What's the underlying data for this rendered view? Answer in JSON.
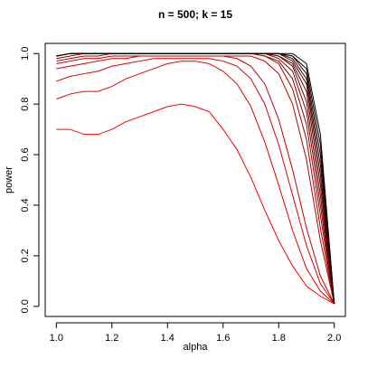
{
  "chart_data": {
    "type": "line",
    "title": "n = 500; k = 15",
    "x_label": "alpha",
    "y_label": "power",
    "x": [
      1.0,
      1.05,
      1.1,
      1.15,
      1.2,
      1.25,
      1.3,
      1.35,
      1.4,
      1.45,
      1.5,
      1.55,
      1.6,
      1.65,
      1.7,
      1.75,
      1.8,
      1.85,
      1.9,
      1.95,
      2.0
    ],
    "xlim": [
      0.96,
      2.04
    ],
    "ylim": [
      -0.04,
      1.04
    ],
    "xticks": [
      {
        "value": 1.0,
        "label": "1.0"
      },
      1.2,
      1.4,
      1.6,
      1.8,
      {
        "value": 2.0,
        "label": "2.0"
      }
    ],
    "yticks": [
      {
        "value": 0,
        "label": "0.0"
      },
      0.2,
      0.4,
      0.6,
      0.8,
      {
        "value": 1,
        "label": "1.0"
      }
    ],
    "series": [
      {
        "color": "#ff0000",
        "values": [
          0.7,
          0.7,
          0.68,
          0.68,
          0.7,
          0.73,
          0.75,
          0.77,
          0.79,
          0.8,
          0.79,
          0.77,
          0.7,
          0.62,
          0.51,
          0.38,
          0.26,
          0.16,
          0.08,
          0.04,
          0.01
        ]
      },
      {
        "color": "#ed0000",
        "values": [
          0.82,
          0.84,
          0.85,
          0.85,
          0.87,
          0.9,
          0.92,
          0.94,
          0.96,
          0.97,
          0.97,
          0.96,
          0.93,
          0.88,
          0.79,
          0.65,
          0.48,
          0.3,
          0.15,
          0.06,
          0.01
        ]
      },
      {
        "color": "#db0000",
        "values": [
          0.89,
          0.91,
          0.92,
          0.93,
          0.95,
          0.96,
          0.97,
          0.98,
          0.98,
          0.98,
          0.98,
          0.98,
          0.97,
          0.95,
          0.9,
          0.8,
          0.64,
          0.44,
          0.24,
          0.09,
          0.01
        ]
      },
      {
        "color": "#c80000",
        "values": [
          0.94,
          0.95,
          0.96,
          0.97,
          0.98,
          0.98,
          0.99,
          0.99,
          0.99,
          0.99,
          0.99,
          0.99,
          0.99,
          0.98,
          0.95,
          0.88,
          0.74,
          0.54,
          0.31,
          0.12,
          0.01
        ]
      },
      {
        "color": "#b60000",
        "values": [
          0.96,
          0.97,
          0.98,
          0.98,
          0.99,
          0.99,
          0.99,
          0.99,
          0.99,
          0.99,
          0.99,
          0.99,
          0.99,
          0.99,
          0.99,
          0.97,
          0.92,
          0.8,
          0.58,
          0.26,
          0.01
        ]
      },
      {
        "color": "#a40000",
        "values": [
          0.97,
          0.98,
          0.99,
          0.99,
          1,
          1,
          1,
          1,
          1,
          1,
          1,
          1,
          1,
          1,
          1,
          0.99,
          0.96,
          0.86,
          0.66,
          0.31,
          0.01
        ]
      },
      {
        "color": "#920000",
        "values": [
          0.98,
          0.99,
          1,
          1,
          1,
          1,
          1,
          1,
          1,
          1,
          1,
          1,
          1,
          1,
          1,
          0.99,
          0.97,
          0.9,
          0.72,
          0.36,
          0.01
        ]
      },
      {
        "color": "#800000",
        "values": [
          0.99,
          1,
          1,
          1,
          1,
          1,
          1,
          1,
          1,
          1,
          1,
          1,
          1,
          1,
          1,
          1,
          0.98,
          0.93,
          0.77,
          0.4,
          0.01
        ]
      },
      {
        "color": "#6d0000",
        "values": [
          0.99,
          1,
          1,
          1,
          1,
          1,
          1,
          1,
          1,
          1,
          1,
          1,
          1,
          1,
          1,
          1,
          0.99,
          0.95,
          0.81,
          0.44,
          0.01
        ]
      },
      {
        "color": "#5b0000",
        "values": [
          0.99,
          1,
          1,
          1,
          1,
          1,
          1,
          1,
          1,
          1,
          1,
          1,
          1,
          1,
          1,
          1,
          0.99,
          0.96,
          0.85,
          0.48,
          0.01
        ]
      },
      {
        "color": "#490000",
        "values": [
          0.99,
          1,
          1,
          1,
          1,
          1,
          1,
          1,
          1,
          1,
          1,
          1,
          1,
          1,
          1,
          1,
          1,
          0.97,
          0.88,
          0.52,
          0.01
        ]
      },
      {
        "color": "#370000",
        "values": [
          0.99,
          1,
          1,
          1,
          1,
          1,
          1,
          1,
          1,
          1,
          1,
          1,
          1,
          1,
          1,
          1,
          1,
          0.98,
          0.9,
          0.56,
          0.01
        ]
      },
      {
        "color": "#240000",
        "values": [
          0.99,
          1,
          1,
          1,
          1,
          1,
          1,
          1,
          1,
          1,
          1,
          1,
          1,
          1,
          1,
          1,
          1,
          0.99,
          0.92,
          0.6,
          0.01
        ]
      },
      {
        "color": "#120000",
        "values": [
          0.99,
          1,
          1,
          1,
          1,
          1,
          1,
          1,
          1,
          1,
          1,
          1,
          1,
          1,
          1,
          1,
          1,
          0.99,
          0.94,
          0.64,
          0.01
        ]
      },
      {
        "color": "#000000",
        "values": [
          0.99,
          1,
          1,
          1,
          1,
          1,
          1,
          1,
          1,
          1,
          1,
          1,
          1,
          1,
          1,
          1,
          1,
          1,
          0.96,
          0.68,
          0.01
        ]
      }
    ]
  }
}
